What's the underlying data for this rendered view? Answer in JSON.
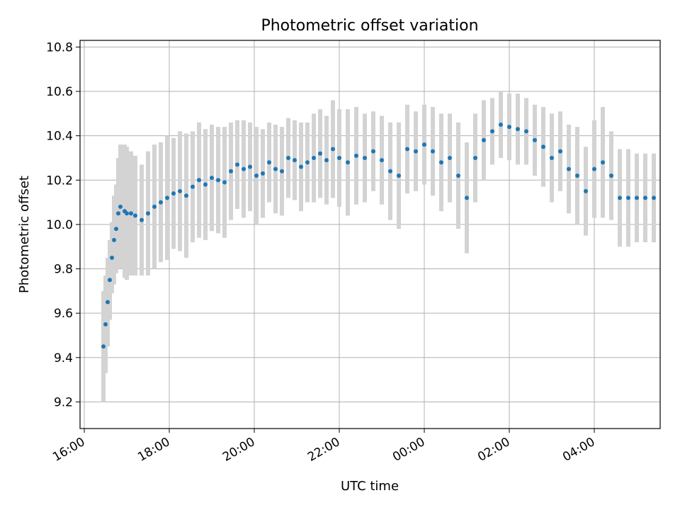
{
  "chart_data": {
    "type": "scatter",
    "title": "Photometric offset variation",
    "xlabel": "UTC time",
    "ylabel": "Photometric offset",
    "grid": true,
    "legend": "none",
    "x_axis": {
      "type": "time",
      "unit": "hours since 16:00 UTC as labeled",
      "range": [
        -0.1,
        13.55
      ],
      "ticks": [
        0,
        2,
        4,
        6,
        8,
        10,
        12
      ],
      "tick_labels": [
        "16:00",
        "18:00",
        "20:00",
        "22:00",
        "00:00",
        "02:00",
        "04:00"
      ]
    },
    "y_axis": {
      "range": [
        9.08,
        10.83
      ],
      "ticks": [
        9.2,
        9.4,
        9.6,
        9.8,
        10.0,
        10.2,
        10.4,
        10.6,
        10.8
      ],
      "tick_labels": [
        "9.2",
        "9.4",
        "9.6",
        "9.8",
        "10.0",
        "10.2",
        "10.4",
        "10.6",
        "10.8"
      ]
    },
    "colors": {
      "points": "#1f77b4",
      "errorbars": "#d3d3d3",
      "grid": "#b0b0b0"
    },
    "series": [
      {
        "style": "points with error bars",
        "x": [
          0.45,
          0.5,
          0.55,
          0.6,
          0.65,
          0.7,
          0.75,
          0.8,
          0.85,
          0.95,
          1.0,
          1.1,
          1.2,
          1.35,
          1.5,
          1.65,
          1.8,
          1.95,
          2.1,
          2.25,
          2.4,
          2.55,
          2.7,
          2.85,
          3.0,
          3.15,
          3.3,
          3.45,
          3.6,
          3.75,
          3.9,
          4.05,
          4.2,
          4.35,
          4.5,
          4.65,
          4.8,
          4.95,
          5.1,
          5.25,
          5.4,
          5.55,
          5.7,
          5.85,
          6.0,
          6.2,
          6.4,
          6.6,
          6.8,
          7.0,
          7.2,
          7.4,
          7.6,
          7.8,
          8.0,
          8.2,
          8.4,
          8.6,
          8.8,
          9.0,
          9.2,
          9.4,
          9.6,
          9.8,
          10.0,
          10.2,
          10.4,
          10.6,
          10.8,
          11.0,
          11.2,
          11.4,
          11.6,
          11.8,
          12.0,
          12.2,
          12.4,
          12.6,
          12.8,
          13.0,
          13.2,
          13.4
        ],
        "y": [
          9.45,
          9.55,
          9.65,
          9.75,
          9.85,
          9.93,
          9.98,
          10.05,
          10.08,
          10.06,
          10.05,
          10.05,
          10.04,
          10.02,
          10.05,
          10.08,
          10.1,
          10.12,
          10.14,
          10.15,
          10.13,
          10.17,
          10.2,
          10.18,
          10.21,
          10.2,
          10.19,
          10.24,
          10.27,
          10.25,
          10.26,
          10.22,
          10.23,
          10.28,
          10.25,
          10.24,
          10.3,
          10.29,
          10.26,
          10.28,
          10.3,
          10.32,
          10.29,
          10.34,
          10.3,
          10.28,
          10.31,
          10.3,
          10.33,
          10.29,
          10.24,
          10.22,
          10.34,
          10.33,
          10.36,
          10.33,
          10.28,
          10.3,
          10.22,
          10.12,
          10.3,
          10.38,
          10.42,
          10.45,
          10.44,
          10.43,
          10.42,
          10.38,
          10.35,
          10.3,
          10.33,
          10.25,
          10.22,
          10.15,
          10.25,
          10.28,
          10.22,
          10.12,
          10.12,
          10.12,
          10.12,
          10.12
        ],
        "err": [
          0.25,
          0.22,
          0.2,
          0.18,
          0.16,
          0.2,
          0.2,
          0.25,
          0.28,
          0.3,
          0.3,
          0.28,
          0.27,
          0.25,
          0.28,
          0.28,
          0.27,
          0.28,
          0.25,
          0.27,
          0.28,
          0.25,
          0.26,
          0.25,
          0.24,
          0.24,
          0.25,
          0.22,
          0.2,
          0.22,
          0.2,
          0.22,
          0.2,
          0.18,
          0.2,
          0.2,
          0.18,
          0.18,
          0.2,
          0.18,
          0.2,
          0.2,
          0.2,
          0.22,
          0.22,
          0.24,
          0.22,
          0.2,
          0.18,
          0.2,
          0.22,
          0.24,
          0.2,
          0.18,
          0.18,
          0.2,
          0.22,
          0.2,
          0.24,
          0.25,
          0.2,
          0.18,
          0.15,
          0.15,
          0.15,
          0.16,
          0.15,
          0.16,
          0.18,
          0.2,
          0.18,
          0.2,
          0.22,
          0.2,
          0.22,
          0.25,
          0.2,
          0.22,
          0.22,
          0.2,
          0.2,
          0.2
        ]
      }
    ]
  }
}
